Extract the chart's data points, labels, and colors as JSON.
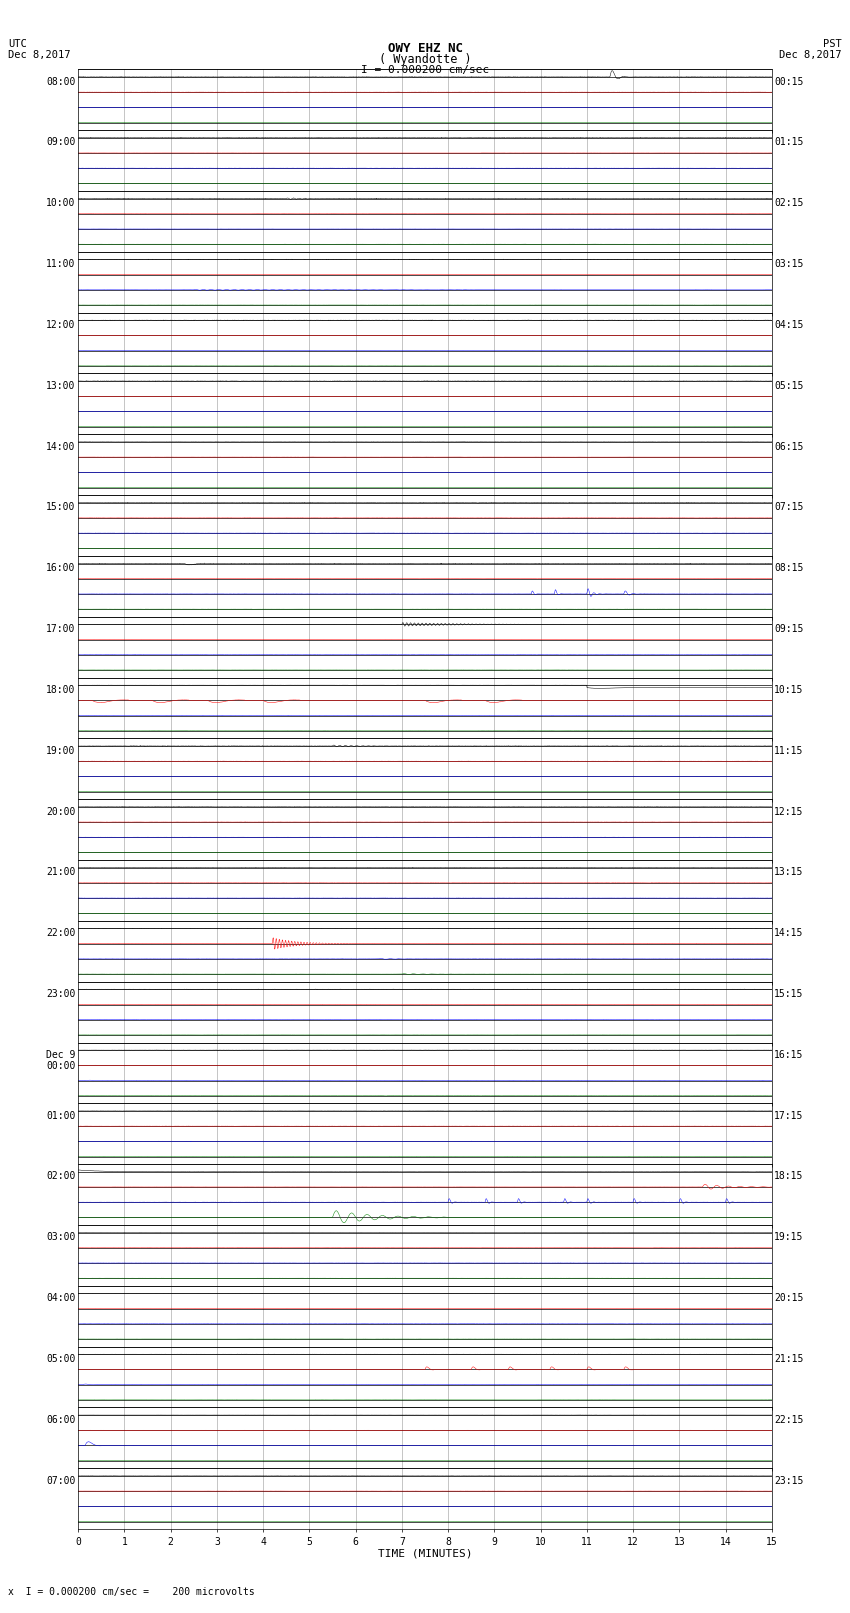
{
  "title_line1": "OWY EHZ NC",
  "title_line2": "( Wyandotte )",
  "scale_label": "I = 0.000200 cm/sec",
  "utc_label": "UTC\nDec 8,2017",
  "pst_label": "PST\nDec 8,2017",
  "bottom_label": "x  I = 0.000200 cm/sec =    200 microvolts",
  "xlabel": "TIME (MINUTES)",
  "left_times": [
    "08:00",
    "09:00",
    "10:00",
    "11:00",
    "12:00",
    "13:00",
    "14:00",
    "15:00",
    "16:00",
    "17:00",
    "18:00",
    "19:00",
    "20:00",
    "21:00",
    "22:00",
    "23:00",
    "Dec 9\n00:00",
    "01:00",
    "02:00",
    "03:00",
    "04:00",
    "05:00",
    "06:00",
    "07:00"
  ],
  "right_times": [
    "00:15",
    "01:15",
    "02:15",
    "03:15",
    "04:15",
    "05:15",
    "06:15",
    "07:15",
    "08:15",
    "09:15",
    "10:15",
    "11:15",
    "12:15",
    "13:15",
    "14:15",
    "15:15",
    "16:15",
    "17:15",
    "18:15",
    "19:15",
    "20:15",
    "21:15",
    "22:15",
    "23:15"
  ],
  "n_rows": 24,
  "fig_width": 8.5,
  "fig_height": 16.13,
  "bg_color": "#ffffff",
  "grid_color": "#aaaaaa",
  "title_fontsize": 9,
  "label_fontsize": 7.5,
  "tick_fontsize": 7
}
